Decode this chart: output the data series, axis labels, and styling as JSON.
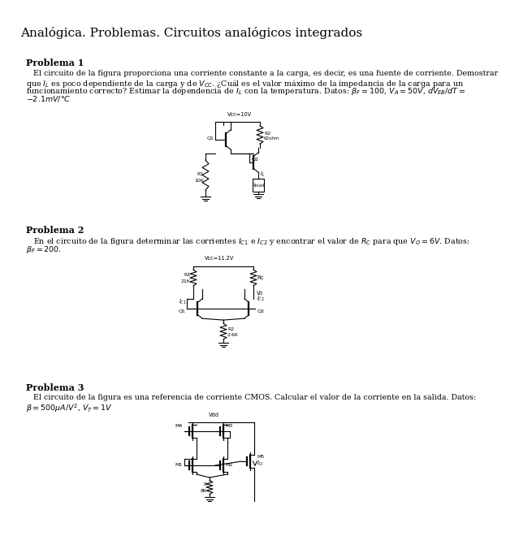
{
  "title": "Analógica. Problemas. Circuitos analógicos integrados",
  "bg_color": "#ffffff",
  "text_color": "#000000",
  "p1_heading": "Problema 1",
  "p1_text_line1": "   El circuito de la figura proporciona una corriente constante a la carga, es decir, es una fuente de corriente. Demostrar",
  "p1_text_line2": "que $I_L$ es poco dependiente de la carga y de $V_{CC}$. ¿Cuál es el valor máximo de la impedancia de la carga para un",
  "p1_text_line3": "funcionamiento correcto? Estimar la dependencia de $I_L$ con la temperatura. Datos: $\\beta_F = 100$, $V_A = 50V$, $dV_{EB}/dT =$",
  "p1_text_line4": "$-2.1mV/°C$",
  "p2_heading": "Problema 2",
  "p2_text_line1": "   En el circuito de la figura determinar las corrientes $I_{C1}$ e $I_{C2}$ y encontrar el valor de $R_C$ para que $V_O = 6V$. Datos:",
  "p2_text_line2": "$\\beta_F = 200$.",
  "p3_heading": "Problema 3",
  "p3_text_line1": "   El circuito de la figura es una referencia de corriente CMOS. Calcular el valor de la corriente en la salida. Datos:",
  "p3_text_line2": "$\\beta = 500\\mu A/V^2$, $V_T = 1V$"
}
